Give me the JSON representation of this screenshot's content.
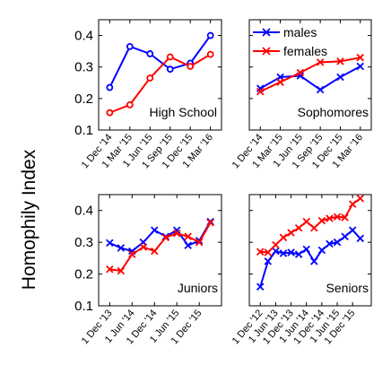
{
  "colors": {
    "males": "#0000ff",
    "females": "#ff0000"
  },
  "figure": {
    "ylabel": "Homophily Index"
  },
  "legend": {
    "placement": "top-left of Sophomores panel",
    "entries": [
      {
        "name": "males",
        "marker": "x",
        "color": "#0000ff"
      },
      {
        "name": "females",
        "marker": "x",
        "color": "#ff0000"
      }
    ]
  },
  "chart_data": [
    {
      "type": "line",
      "panel_label": "High School",
      "marker": "o",
      "x": [
        "1 Dec '14",
        "1 Mar '15",
        "1 Jun '15",
        "1 Sep '15",
        "1 Dec '15",
        "1 Mar '16"
      ],
      "xticks": [
        "1 Dec '14",
        "1 Mar '15",
        "1 Jun '15",
        "1 Sep '15",
        "1 Dec '15",
        "1 Mar '16"
      ],
      "series": [
        {
          "key": "males",
          "values": [
            0.235,
            0.365,
            0.342,
            0.293,
            0.312,
            0.4
          ]
        },
        {
          "key": "females",
          "values": [
            0.155,
            0.18,
            0.265,
            0.332,
            0.302,
            0.34
          ]
        }
      ],
      "ylim": [
        0.1,
        0.45
      ],
      "yticks": [
        "0.1",
        "0.2",
        "0.3",
        "0.4"
      ],
      "grid": false
    },
    {
      "type": "line",
      "panel_label": "Sophomores",
      "marker": "x",
      "x": [
        "1 Dec '14",
        "1 Mar '15",
        "1 Jun '15",
        "1 Sep '15",
        "1 Dec '15",
        "1 Mar '16"
      ],
      "xticks": [
        "1 Dec '14",
        "1 Mar '15",
        "1 Jun '15",
        "1 Sep '15",
        "1 Dec '15",
        "1 Mar '16"
      ],
      "series": [
        {
          "key": "males",
          "values": [
            0.232,
            0.268,
            0.272,
            0.228,
            0.268,
            0.302
          ]
        },
        {
          "key": "females",
          "values": [
            0.222,
            0.252,
            0.282,
            0.315,
            0.318,
            0.33
          ]
        }
      ],
      "ylim": [
        0.1,
        0.45
      ],
      "yticks": [
        "0.1",
        "0.2",
        "0.3",
        "0.4"
      ],
      "grid": false
    },
    {
      "type": "line",
      "panel_label": "Juniors",
      "marker": "x",
      "x": [
        "1 Dec '13",
        "1 Mar '14",
        "1 Jun '14",
        "1 Sep '14",
        "1 Dec '14",
        "1 Mar '15",
        "1 Jun '15",
        "1 Sep '15",
        "1 Dec '15",
        "1 Mar '16"
      ],
      "xticks": [
        "1 Dec '13",
        "1 Jun '14",
        "1 Dec '14",
        "1 Jun '15",
        "1 Dec '15"
      ],
      "series": [
        {
          "key": "males",
          "values": [
            0.298,
            0.282,
            0.272,
            0.3,
            0.338,
            0.318,
            0.338,
            0.29,
            0.305,
            0.365
          ]
        },
        {
          "key": "females",
          "values": [
            0.215,
            0.21,
            0.262,
            0.285,
            0.272,
            0.315,
            0.328,
            0.318,
            0.3,
            0.362
          ]
        }
      ],
      "ylim": [
        0.1,
        0.45
      ],
      "yticks": [
        "0.1",
        "0.2",
        "0.3",
        "0.4"
      ],
      "grid": false
    },
    {
      "type": "line",
      "panel_label": "Seniors",
      "marker": "x",
      "x": [
        "1 Dec '12",
        "1 Mar '13",
        "1 Jun '13",
        "1 Sep '13",
        "1 Dec '13",
        "1 Mar '14",
        "1 Jun '14",
        "1 Sep '14",
        "1 Dec '14",
        "1 Mar '15",
        "1 Jun '15",
        "1 Sep '15",
        "1 Dec '15",
        "1 Mar '16"
      ],
      "xticks": [
        "1 Dec '12",
        "1 Jun '13",
        "1 Dec '13",
        "1 Jun '14",
        "1 Dec '14",
        "1 Jun '15",
        "1 Dec '15"
      ],
      "series": [
        {
          "key": "males",
          "values": [
            0.16,
            0.24,
            0.272,
            0.265,
            0.268,
            0.262,
            0.278,
            0.24,
            0.275,
            0.295,
            0.3,
            0.318,
            0.338,
            0.312
          ]
        },
        {
          "key": "females",
          "values": [
            0.27,
            0.268,
            0.292,
            0.315,
            0.33,
            0.345,
            0.365,
            0.345,
            0.368,
            0.375,
            0.38,
            0.378,
            0.42,
            0.438
          ]
        }
      ],
      "ylim": [
        0.1,
        0.45
      ],
      "yticks": [
        "0.1",
        "0.2",
        "0.3",
        "0.4"
      ],
      "grid": false
    }
  ]
}
